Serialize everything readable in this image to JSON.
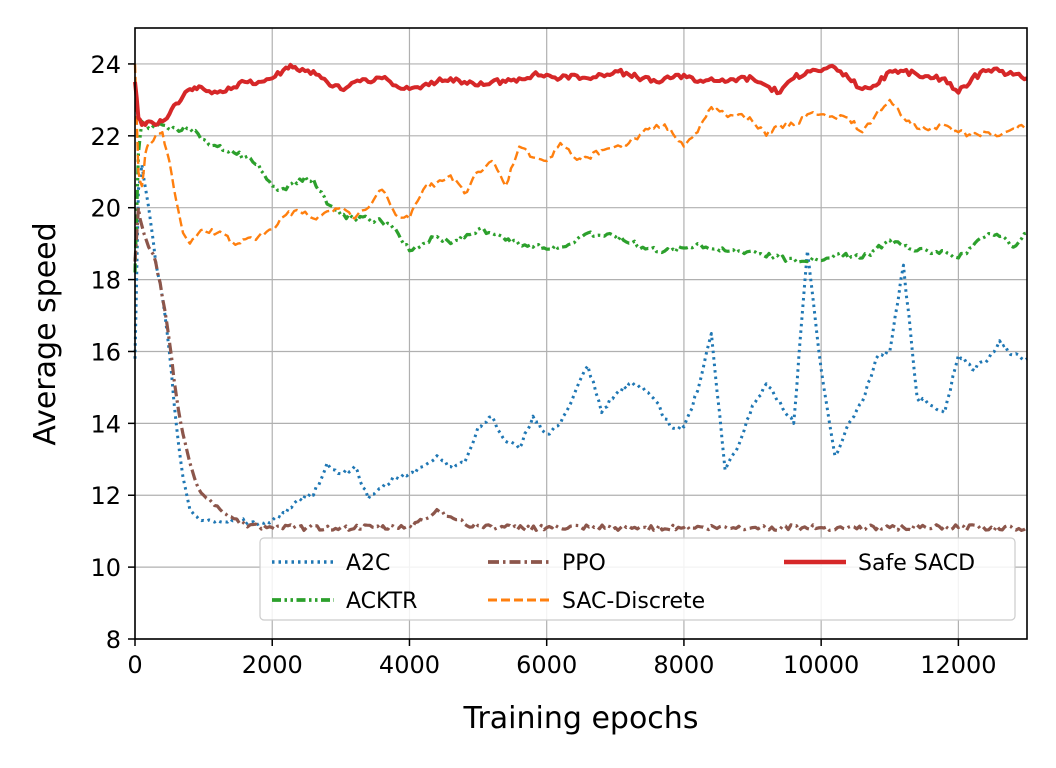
{
  "chart_data": {
    "type": "line",
    "title": "",
    "xlabel": "Training epochs",
    "ylabel": "Average speed",
    "xlim": [
      0,
      13000
    ],
    "ylim": [
      8,
      25
    ],
    "xticks": [
      0,
      2000,
      4000,
      6000,
      8000,
      10000,
      12000
    ],
    "yticks": [
      8,
      10,
      12,
      14,
      16,
      18,
      20,
      22,
      24
    ],
    "grid": true,
    "legend_position": "lower-right",
    "series": [
      {
        "name": "A2C",
        "color": "#1f77b4",
        "style": "dotted",
        "x": [
          0,
          50,
          100,
          200,
          300,
          400,
          500,
          600,
          700,
          800,
          900,
          1000,
          1200,
          1500,
          1800,
          2000,
          2200,
          2400,
          2600,
          2800,
          3000,
          3200,
          3400,
          3600,
          3800,
          4000,
          4200,
          4400,
          4600,
          4800,
          5000,
          5200,
          5400,
          5600,
          5800,
          6000,
          6200,
          6400,
          6600,
          6800,
          7000,
          7200,
          7400,
          7600,
          7800,
          8000,
          8200,
          8400,
          8600,
          8800,
          9000,
          9200,
          9400,
          9600,
          9800,
          10000,
          10200,
          10400,
          10600,
          10800,
          11000,
          11200,
          11400,
          11600,
          11800,
          12000,
          12200,
          12400,
          12600,
          12800,
          13000
        ],
        "y": [
          15.8,
          20.5,
          21.2,
          20.0,
          18.5,
          17.5,
          16.0,
          14.0,
          12.5,
          11.6,
          11.4,
          11.3,
          11.3,
          11.3,
          11.2,
          11.3,
          11.5,
          11.9,
          12.0,
          12.9,
          12.6,
          12.8,
          11.9,
          12.2,
          12.5,
          12.6,
          12.8,
          13.1,
          12.8,
          12.9,
          13.9,
          14.2,
          13.5,
          13.3,
          14.2,
          13.7,
          14.0,
          14.8,
          15.6,
          14.3,
          14.8,
          15.1,
          15.0,
          14.6,
          13.9,
          13.9,
          14.9,
          16.5,
          12.7,
          13.4,
          14.5,
          15.1,
          14.6,
          14.0,
          18.8,
          15.5,
          13.1,
          14.0,
          14.6,
          15.8,
          16.0,
          18.4,
          14.7,
          14.5,
          14.3,
          15.9,
          15.5,
          15.7,
          16.3,
          15.9,
          15.8
        ]
      },
      {
        "name": "ACKTR",
        "color": "#2ca02c",
        "style": "dash-dot-dot",
        "x": [
          0,
          50,
          100,
          200,
          400,
          600,
          800,
          1000,
          1200,
          1400,
          1600,
          1800,
          2000,
          2200,
          2400,
          2600,
          2800,
          3000,
          3200,
          3400,
          3600,
          3800,
          4000,
          4200,
          4400,
          4600,
          5000,
          5400,
          5800,
          6200,
          6600,
          7000,
          7400,
          7800,
          8200,
          8600,
          9000,
          9400,
          9800,
          10200,
          10600,
          11000,
          11400,
          11800,
          12000,
          12200,
          12400,
          12600,
          12800,
          13000
        ],
        "y": [
          18.2,
          21.5,
          22.4,
          22.2,
          22.3,
          22.2,
          22.2,
          21.9,
          21.7,
          21.6,
          21.4,
          21.2,
          20.6,
          20.5,
          20.8,
          20.8,
          20.1,
          19.8,
          19.7,
          19.7,
          19.6,
          19.4,
          18.8,
          19.0,
          19.2,
          19.0,
          19.4,
          19.1,
          18.9,
          18.9,
          19.3,
          19.2,
          18.9,
          18.8,
          19.0,
          18.8,
          18.8,
          18.6,
          18.5,
          18.7,
          18.6,
          19.1,
          18.8,
          18.8,
          18.6,
          18.9,
          19.2,
          19.2,
          18.9,
          19.3
        ]
      },
      {
        "name": "PPO",
        "color": "#8c564b",
        "style": "dash-dot",
        "x": [
          0,
          50,
          100,
          200,
          300,
          400,
          500,
          600,
          700,
          800,
          900,
          1000,
          1200,
          1400,
          1600,
          1800,
          2000,
          2500,
          3000,
          3500,
          3800,
          4000,
          4200,
          4400,
          4600,
          4800,
          5000,
          5500,
          6000,
          6500,
          7000,
          8000,
          9000,
          10000,
          11000,
          12000,
          13000
        ],
        "y": [
          18.5,
          20.0,
          19.5,
          18.9,
          18.5,
          17.5,
          16.3,
          14.8,
          13.7,
          12.9,
          12.3,
          12.0,
          11.7,
          11.4,
          11.2,
          11.15,
          11.1,
          11.1,
          11.1,
          11.1,
          11.1,
          11.15,
          11.3,
          11.6,
          11.4,
          11.2,
          11.15,
          11.1,
          11.1,
          11.1,
          11.1,
          11.1,
          11.1,
          11.1,
          11.1,
          11.1,
          11.1
        ]
      },
      {
        "name": "SAC-Discrete",
        "color": "#ff7f0e",
        "style": "dashed",
        "x": [
          0,
          50,
          100,
          150,
          200,
          300,
          400,
          500,
          600,
          700,
          800,
          1000,
          1200,
          1500,
          1800,
          2000,
          2200,
          2400,
          2600,
          2800,
          3000,
          3200,
          3400,
          3600,
          3800,
          4000,
          4200,
          4400,
          4600,
          4800,
          5000,
          5200,
          5400,
          5600,
          5800,
          6000,
          6200,
          6400,
          6600,
          6800,
          7000,
          7200,
          7400,
          7600,
          7800,
          8000,
          8200,
          8400,
          8600,
          8800,
          9000,
          9200,
          9400,
          9600,
          9800,
          10000,
          10200,
          10400,
          10600,
          10800,
          11000,
          11200,
          11400,
          11600,
          11800,
          12000,
          12200,
          12400,
          12600,
          12800,
          13000
        ],
        "y": [
          24.0,
          21.0,
          20.6,
          21.5,
          21.8,
          22.0,
          22.1,
          21.3,
          20.2,
          19.3,
          19.0,
          19.4,
          19.3,
          19.0,
          19.2,
          19.4,
          19.8,
          19.9,
          19.7,
          19.9,
          20.0,
          19.7,
          20.0,
          20.5,
          19.8,
          19.7,
          20.5,
          20.7,
          20.9,
          20.4,
          21.0,
          21.3,
          20.6,
          21.7,
          21.4,
          21.3,
          21.8,
          21.4,
          21.4,
          21.6,
          21.7,
          21.8,
          22.1,
          22.3,
          22.2,
          21.7,
          22.1,
          22.8,
          22.6,
          22.6,
          22.4,
          22.0,
          22.3,
          22.3,
          22.6,
          22.6,
          22.5,
          22.5,
          22.1,
          22.6,
          23.0,
          22.5,
          22.2,
          22.2,
          22.3,
          22.1,
          22.0,
          22.1,
          22.0,
          22.2,
          22.3
        ]
      },
      {
        "name": "Safe SACD",
        "color": "#d62728",
        "style": "solid",
        "x": [
          0,
          50,
          100,
          150,
          200,
          300,
          400,
          500,
          600,
          700,
          800,
          900,
          1000,
          1200,
          1400,
          1600,
          1800,
          2000,
          2200,
          2300,
          2400,
          2600,
          2800,
          3000,
          3200,
          3400,
          3600,
          3800,
          4000,
          4200,
          4400,
          4600,
          4800,
          5000,
          5200,
          5400,
          5600,
          5800,
          6000,
          6200,
          6400,
          6600,
          6800,
          7000,
          7200,
          7400,
          7600,
          7800,
          8000,
          8200,
          8400,
          8600,
          8800,
          9000,
          9200,
          9400,
          9600,
          9800,
          10000,
          10200,
          10400,
          10600,
          10800,
          11000,
          11200,
          11400,
          11600,
          11800,
          12000,
          12200,
          12400,
          12600,
          12800,
          13000
        ],
        "y": [
          23.5,
          22.5,
          22.3,
          22.3,
          22.4,
          22.3,
          22.4,
          22.6,
          22.9,
          23.1,
          23.3,
          23.3,
          23.3,
          23.2,
          23.3,
          23.5,
          23.5,
          23.6,
          23.9,
          23.9,
          23.8,
          23.8,
          23.5,
          23.3,
          23.5,
          23.5,
          23.6,
          23.4,
          23.3,
          23.4,
          23.5,
          23.6,
          23.5,
          23.4,
          23.5,
          23.5,
          23.6,
          23.7,
          23.7,
          23.6,
          23.7,
          23.6,
          23.7,
          23.8,
          23.7,
          23.6,
          23.5,
          23.6,
          23.7,
          23.5,
          23.6,
          23.5,
          23.6,
          23.6,
          23.4,
          23.2,
          23.6,
          23.8,
          23.8,
          23.9,
          23.6,
          23.3,
          23.4,
          23.8,
          23.8,
          23.7,
          23.6,
          23.6,
          23.2,
          23.6,
          23.8,
          23.8,
          23.7,
          23.6
        ]
      }
    ]
  }
}
